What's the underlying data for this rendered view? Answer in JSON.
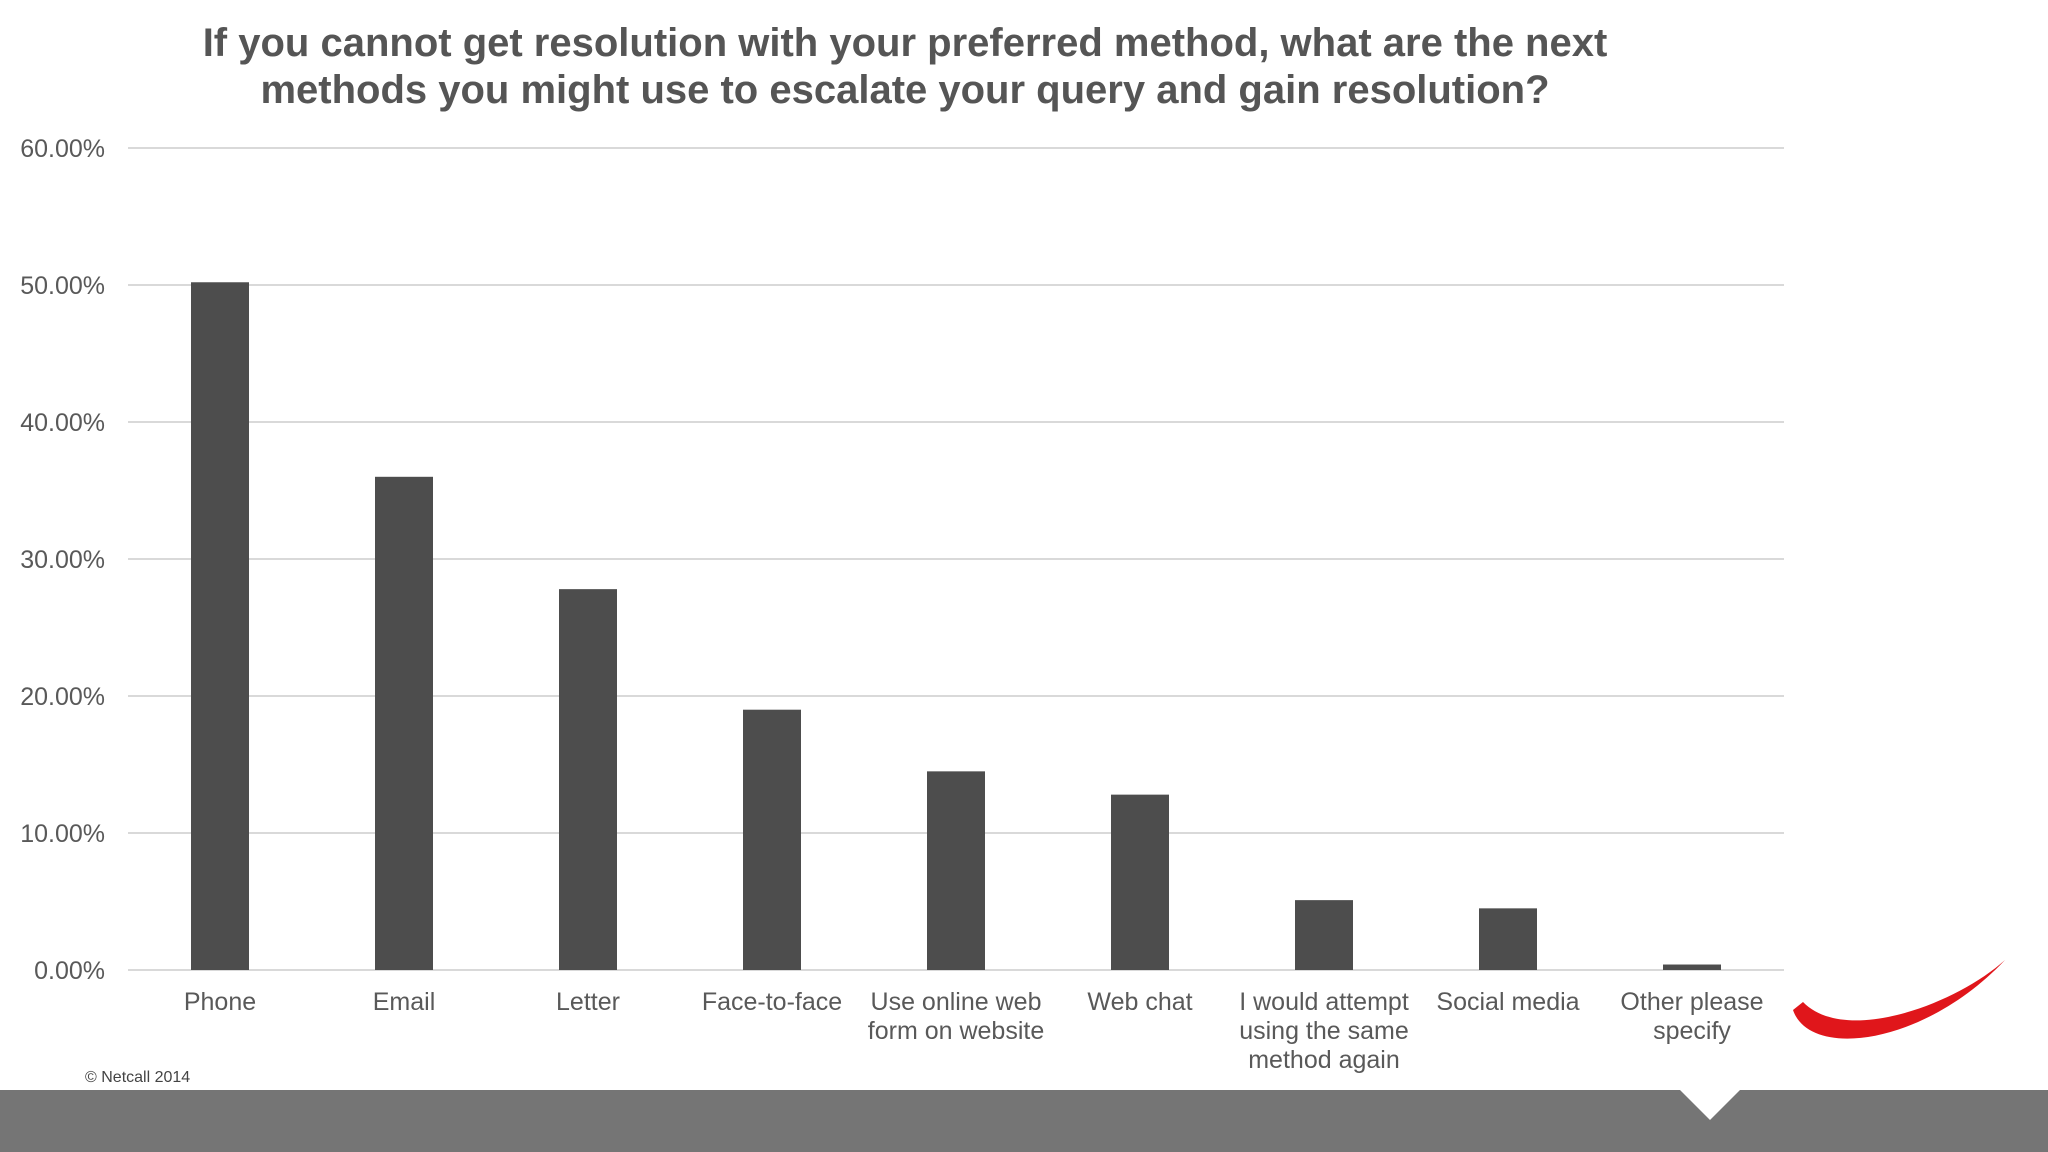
{
  "colors": {
    "bar": "#4d4d4d",
    "grid": "#d9d9d9",
    "text": "#595959",
    "title": "#555555",
    "footer": "#757575",
    "accent": "#e0161b"
  },
  "chart_data": {
    "type": "bar",
    "title_lines": [
      "If you cannot get resolution with your preferred method, what are the next",
      "methods you might use to escalate your query and gain resolution?"
    ],
    "categories": [
      [
        "Phone"
      ],
      [
        "Email"
      ],
      [
        "Letter"
      ],
      [
        "Face-to-face"
      ],
      [
        "Use online web",
        "form on website"
      ],
      [
        "Web chat"
      ],
      [
        "I would attempt",
        "using the same",
        "method again"
      ],
      [
        "Social media"
      ],
      [
        "Other  please",
        "specify"
      ]
    ],
    "values": [
      50.2,
      36.0,
      27.8,
      19.0,
      14.5,
      12.8,
      5.1,
      4.5,
      0.4
    ],
    "y_ticks": [
      "0.00%",
      "10.00%",
      "20.00%",
      "30.00%",
      "40.00%",
      "50.00%",
      "60.00%"
    ],
    "ylim": [
      0,
      60
    ],
    "grid": true,
    "legend": "none"
  },
  "footer": {
    "copyright": "© Netcall 2014",
    "logo_icon": "red-swoosh-logo"
  }
}
